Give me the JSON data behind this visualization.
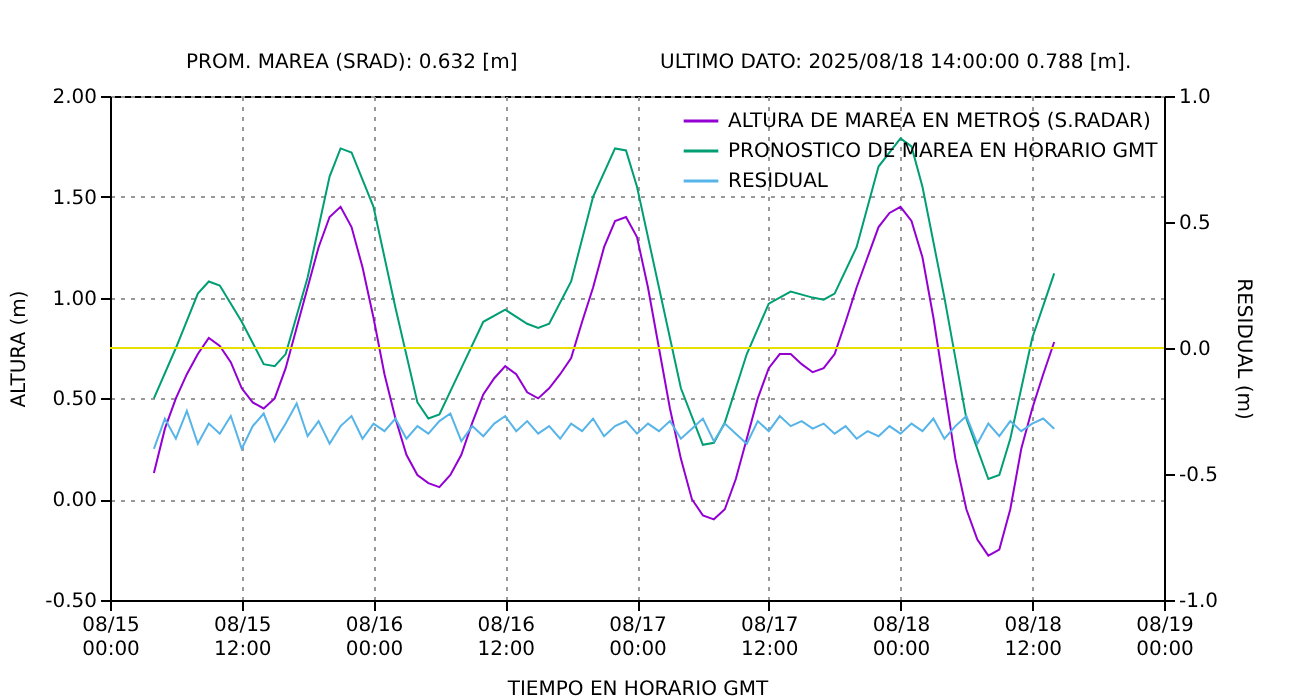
{
  "chart_data": {
    "type": "line",
    "annotations": [
      "PROM. MAREA (SRAD): 0.632 [m]",
      "ULTIMO DATO: 2025/08/18  14:00:00 0.788 [m]."
    ],
    "xlabel": "TIEMPO EN HORARIO GMT",
    "ylabel": "ALTURA (m)",
    "y2label": "RESIDUAL (m)",
    "x": [
      "2025-08-15T04:00",
      "2025-08-15T05:00",
      "2025-08-15T06:00",
      "2025-08-15T07:00",
      "2025-08-15T08:00",
      "2025-08-15T09:00",
      "2025-08-15T10:00",
      "2025-08-15T11:00",
      "2025-08-15T12:00",
      "2025-08-15T13:00",
      "2025-08-15T14:00",
      "2025-08-15T15:00",
      "2025-08-15T16:00",
      "2025-08-15T17:00",
      "2025-08-15T18:00",
      "2025-08-15T19:00",
      "2025-08-15T20:00",
      "2025-08-15T21:00",
      "2025-08-15T22:00",
      "2025-08-15T23:00",
      "2025-08-16T00:00",
      "2025-08-16T01:00",
      "2025-08-16T02:00",
      "2025-08-16T03:00",
      "2025-08-16T04:00",
      "2025-08-16T05:00",
      "2025-08-16T06:00",
      "2025-08-16T07:00",
      "2025-08-16T08:00",
      "2025-08-16T09:00",
      "2025-08-16T10:00",
      "2025-08-16T11:00",
      "2025-08-16T12:00",
      "2025-08-16T13:00",
      "2025-08-16T14:00",
      "2025-08-16T15:00",
      "2025-08-16T16:00",
      "2025-08-16T17:00",
      "2025-08-16T18:00",
      "2025-08-16T19:00",
      "2025-08-16T20:00",
      "2025-08-16T21:00",
      "2025-08-16T22:00",
      "2025-08-16T23:00",
      "2025-08-17T00:00",
      "2025-08-17T01:00",
      "2025-08-17T02:00",
      "2025-08-17T03:00",
      "2025-08-17T04:00",
      "2025-08-17T05:00",
      "2025-08-17T06:00",
      "2025-08-17T07:00",
      "2025-08-17T08:00",
      "2025-08-17T09:00",
      "2025-08-17T10:00",
      "2025-08-17T11:00",
      "2025-08-17T12:00",
      "2025-08-17T13:00",
      "2025-08-17T14:00",
      "2025-08-17T15:00",
      "2025-08-17T16:00",
      "2025-08-17T17:00",
      "2025-08-17T18:00",
      "2025-08-17T19:00",
      "2025-08-17T20:00",
      "2025-08-17T21:00",
      "2025-08-17T22:00",
      "2025-08-17T23:00",
      "2025-08-18T00:00",
      "2025-08-18T01:00",
      "2025-08-18T02:00",
      "2025-08-18T03:00",
      "2025-08-18T04:00",
      "2025-08-18T05:00",
      "2025-08-18T06:00",
      "2025-08-18T07:00",
      "2025-08-18T08:00",
      "2025-08-18T09:00",
      "2025-08-18T10:00",
      "2025-08-18T11:00",
      "2025-08-18T12:00",
      "2025-08-18T13:00",
      "2025-08-18T14:00"
    ],
    "series": [
      {
        "name": "ALTURA DE MAREA EN METROS (S.RADAR)",
        "color": "#9400d3",
        "values": [
          0.13,
          0.35,
          0.5,
          0.62,
          0.72,
          0.8,
          0.76,
          0.68,
          0.55,
          0.48,
          0.45,
          0.5,
          0.65,
          0.85,
          1.05,
          1.25,
          1.4,
          1.45,
          1.35,
          1.15,
          0.9,
          0.62,
          0.4,
          0.22,
          0.12,
          0.08,
          0.06,
          0.12,
          0.22,
          0.38,
          0.52,
          0.6,
          0.66,
          0.62,
          0.53,
          0.5,
          0.55,
          0.62,
          0.7,
          0.88,
          1.05,
          1.25,
          1.38,
          1.4,
          1.3,
          1.05,
          0.75,
          0.45,
          0.2,
          0.0,
          -0.08,
          -0.1,
          -0.05,
          0.1,
          0.3,
          0.5,
          0.65,
          0.72,
          0.72,
          0.67,
          0.63,
          0.65,
          0.72,
          0.88,
          1.05,
          1.2,
          1.35,
          1.42,
          1.45,
          1.38,
          1.2,
          0.9,
          0.55,
          0.2,
          -0.05,
          -0.2,
          -0.28,
          -0.25,
          -0.05,
          0.25,
          0.45,
          0.62,
          0.78
        ]
      },
      {
        "name": "PRONOSTICO DE MAREA EN HORARIO GMT",
        "color": "#009e73",
        "x": [
          "2025-08-15T04:00",
          "2025-08-15T06:00",
          "2025-08-15T08:00",
          "2025-08-15T09:00",
          "2025-08-15T10:00",
          "2025-08-15T12:00",
          "2025-08-15T14:00",
          "2025-08-15T15:00",
          "2025-08-15T16:00",
          "2025-08-15T18:00",
          "2025-08-15T20:00",
          "2025-08-15T21:00",
          "2025-08-15T22:00",
          "2025-08-16T00:00",
          "2025-08-16T02:00",
          "2025-08-16T04:00",
          "2025-08-16T05:00",
          "2025-08-16T06:00",
          "2025-08-16T08:00",
          "2025-08-16T10:00",
          "2025-08-16T12:00",
          "2025-08-16T14:00",
          "2025-08-16T15:00",
          "2025-08-16T16:00",
          "2025-08-16T18:00",
          "2025-08-16T20:00",
          "2025-08-16T22:00",
          "2025-08-16T23:00",
          "2025-08-17T00:00",
          "2025-08-17T02:00",
          "2025-08-17T04:00",
          "2025-08-17T06:00",
          "2025-08-17T07:00",
          "2025-08-17T08:00",
          "2025-08-17T10:00",
          "2025-08-17T12:00",
          "2025-08-17T14:00",
          "2025-08-17T16:00",
          "2025-08-17T17:00",
          "2025-08-17T18:00",
          "2025-08-17T20:00",
          "2025-08-17T22:00",
          "2025-08-18T00:00",
          "2025-08-18T01:00",
          "2025-08-18T02:00",
          "2025-08-18T04:00",
          "2025-08-18T06:00",
          "2025-08-18T08:00",
          "2025-08-18T09:00",
          "2025-08-18T10:00",
          "2025-08-18T12:00",
          "2025-08-18T14:00"
        ],
        "values": [
          0.5,
          0.75,
          1.02,
          1.08,
          1.06,
          0.88,
          0.67,
          0.66,
          0.72,
          1.1,
          1.6,
          1.74,
          1.72,
          1.45,
          0.95,
          0.48,
          0.4,
          0.42,
          0.65,
          0.88,
          0.94,
          0.87,
          0.85,
          0.87,
          1.08,
          1.5,
          1.74,
          1.73,
          1.55,
          1.05,
          0.55,
          0.27,
          0.28,
          0.38,
          0.72,
          0.97,
          1.03,
          1.0,
          0.99,
          1.02,
          1.25,
          1.65,
          1.79,
          1.75,
          1.55,
          1.0,
          0.4,
          0.1,
          0.12,
          0.3,
          0.8,
          1.12
        ]
      },
      {
        "name": "RESIDUAL",
        "color": "#56b4e9",
        "axis": "y2",
        "values": [
          -0.4,
          -0.28,
          -0.36,
          -0.25,
          -0.38,
          -0.3,
          -0.34,
          -0.27,
          -0.4,
          -0.31,
          -0.26,
          -0.37,
          -0.3,
          -0.22,
          -0.35,
          -0.29,
          -0.38,
          -0.31,
          -0.27,
          -0.36,
          -0.3,
          -0.33,
          -0.28,
          -0.36,
          -0.31,
          -0.34,
          -0.29,
          -0.26,
          -0.37,
          -0.31,
          -0.35,
          -0.3,
          -0.27,
          -0.33,
          -0.29,
          -0.34,
          -0.31,
          -0.36,
          -0.3,
          -0.33,
          -0.28,
          -0.35,
          -0.31,
          -0.29,
          -0.34,
          -0.3,
          -0.33,
          -0.29,
          -0.36,
          -0.32,
          -0.28,
          -0.37,
          -0.3,
          -0.34,
          -0.38,
          -0.29,
          -0.33,
          -0.27,
          -0.31,
          -0.29,
          -0.32,
          -0.3,
          -0.34,
          -0.31,
          -0.36,
          -0.33,
          -0.35,
          -0.31,
          -0.34,
          -0.3,
          -0.33,
          -0.28,
          -0.36,
          -0.31,
          -0.27,
          -0.38,
          -0.3,
          -0.35,
          -0.29,
          -0.33,
          -0.3,
          -0.28,
          -0.32
        ]
      }
    ],
    "xlim": [
      "2025-08-15T00:00",
      "2025-08-19T00:00"
    ],
    "xticks": [
      {
        "value": "2025-08-15T00:00",
        "label": "08/15\n00:00"
      },
      {
        "value": "2025-08-15T12:00",
        "label": "08/15\n12:00"
      },
      {
        "value": "2025-08-16T00:00",
        "label": "08/16\n00:00"
      },
      {
        "value": "2025-08-16T12:00",
        "label": "08/16\n12:00"
      },
      {
        "value": "2025-08-17T00:00",
        "label": "08/17\n00:00"
      },
      {
        "value": "2025-08-17T12:00",
        "label": "08/17\n12:00"
      },
      {
        "value": "2025-08-18T00:00",
        "label": "08/18\n00:00"
      },
      {
        "value": "2025-08-18T12:00",
        "label": "08/18\n12:00"
      },
      {
        "value": "2025-08-19T00:00",
        "label": "08/19\n00:00"
      }
    ],
    "ylim": [
      -0.5,
      2.0
    ],
    "yticks": [
      {
        "value": -0.5,
        "label": "-0.50"
      },
      {
        "value": 0,
        "label": "0.00"
      },
      {
        "value": 0.5,
        "label": "0.50"
      },
      {
        "value": 1,
        "label": "1.00"
      },
      {
        "value": 1.5,
        "label": "1.50"
      },
      {
        "value": 2,
        "label": "2.00"
      }
    ],
    "y2lim": [
      -1.0,
      1.0
    ],
    "y2ticks": [
      {
        "value": -1,
        "label": "-1.0"
      },
      {
        "value": -0.5,
        "label": "-0.5"
      },
      {
        "value": 0,
        "label": "0.0"
      },
      {
        "value": 0.5,
        "label": "0.5"
      },
      {
        "value": 1,
        "label": "1.0"
      }
    ],
    "ref_lines": [
      {
        "axis": "y2",
        "value": 0,
        "color": "#e8e000"
      }
    ],
    "grid": true,
    "legend": "top right"
  }
}
